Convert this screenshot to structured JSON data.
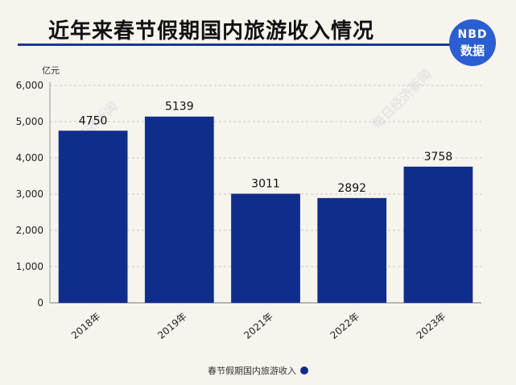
{
  "title": "近年来春节假期国内旅游收入情况",
  "badge": {
    "line1": "NBD",
    "line2": "数据"
  },
  "watermark": "每日经济新闻",
  "colors": {
    "bar": "#0f2e8c",
    "badge": "#2b5fd1"
  },
  "chart_data": {
    "type": "bar",
    "unit_label": "亿元",
    "categories": [
      "2018年",
      "2019年",
      "2021年",
      "2022年",
      "2023年"
    ],
    "series": [
      {
        "name": "春节假期国内旅游收入",
        "values": [
          4750,
          5139,
          3011,
          2892,
          3758
        ]
      }
    ],
    "ylim": [
      0,
      6000
    ],
    "yticks": [
      0,
      1000,
      2000,
      3000,
      4000,
      5000,
      6000
    ],
    "ytick_labels": [
      "0",
      "1,000",
      "2,000",
      "3,000",
      "4,000",
      "5,000",
      "6,000"
    ],
    "grid": true,
    "legend_position": "bottom-center"
  }
}
